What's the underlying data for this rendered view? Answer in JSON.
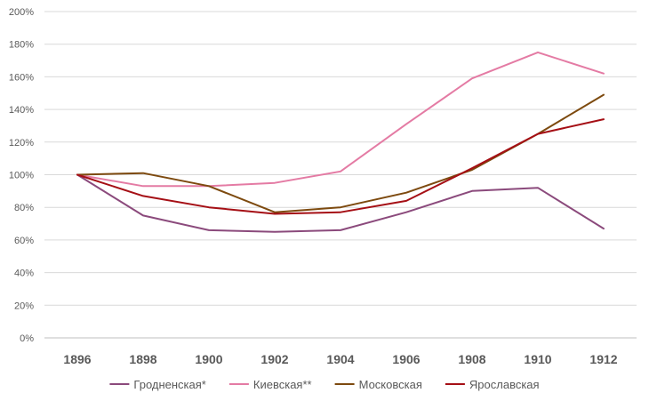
{
  "chart_data": {
    "type": "line",
    "title": "",
    "xlabel": "",
    "ylabel": "",
    "x": [
      "1896",
      "1898",
      "1900",
      "1902",
      "1904",
      "1906",
      "1908",
      "1910",
      "1912"
    ],
    "ylim": [
      0,
      200
    ],
    "y_ticks": [
      0,
      20,
      40,
      60,
      80,
      100,
      120,
      140,
      160,
      180,
      200
    ],
    "y_tick_labels": [
      "0%",
      "20%",
      "40%",
      "60%",
      "80%",
      "100%",
      "120%",
      "140%",
      "160%",
      "180%",
      "200%"
    ],
    "grid": true,
    "legend_position": "bottom",
    "series": [
      {
        "name": "Гродненская*",
        "color": "#8b4a7c",
        "values": [
          100,
          75,
          66,
          65,
          66,
          77,
          90,
          92,
          67
        ]
      },
      {
        "name": "Киевская**",
        "color": "#e47ba4",
        "values": [
          100,
          93,
          93,
          95,
          102,
          131,
          159,
          175,
          162
        ]
      },
      {
        "name": "Московская",
        "color": "#7d4a0f",
        "values": [
          100,
          101,
          93,
          77,
          80,
          89,
          103,
          125,
          149
        ]
      },
      {
        "name": "Ярославская",
        "color": "#a50f15",
        "values": [
          100,
          87,
          80,
          76,
          77,
          84,
          104,
          125,
          134
        ]
      }
    ]
  }
}
